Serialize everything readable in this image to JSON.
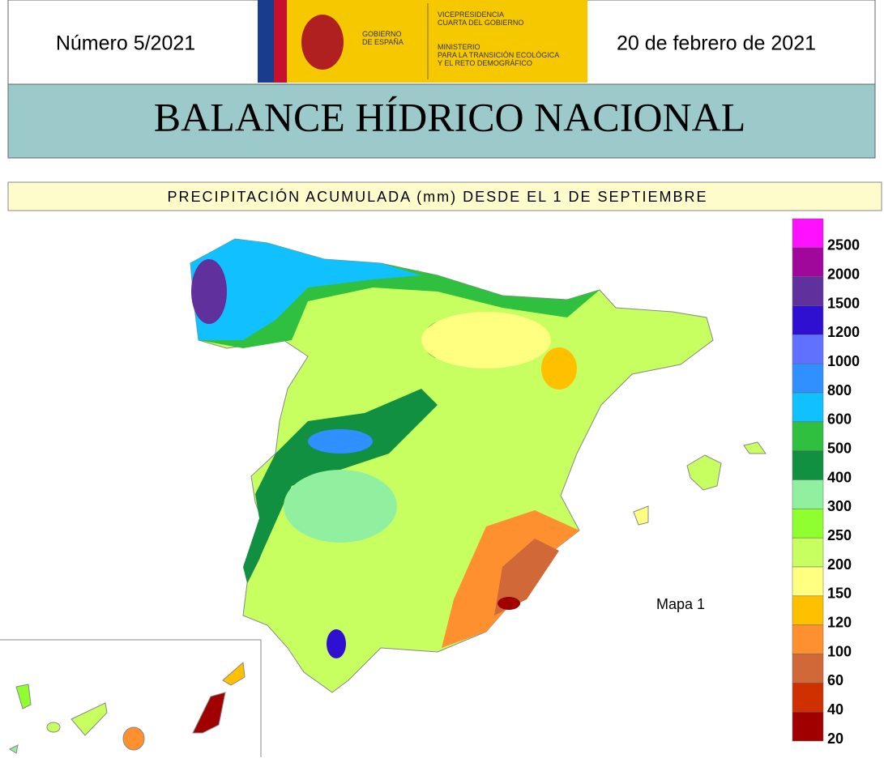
{
  "header": {
    "number": "Número 5/2021",
    "date": "20 de febrero de 2021",
    "logo": {
      "government": [
        "GOBIERNO",
        "DE ESPAÑA"
      ],
      "vicepresidency": [
        "VICEPRESIDENCIA",
        "CUARTA DEL GOBIERNO"
      ],
      "ministry": [
        "MINISTERIO",
        "PARA LA TRANSICIÓN ECOLÓGICA",
        "Y EL RETO DEMOGRÁFICO"
      ]
    },
    "title": "BALANCE HÍDRICO NACIONAL"
  },
  "subtitle": "PRECIPITACIÓN ACUMULADA (mm) DESDE EL 1 DE SEPTIEMBRE",
  "map_label": "Mapa 1",
  "legend": {
    "colors": [
      "#ff10ff",
      "#a0089c",
      "#60309c",
      "#3010d0",
      "#6070ff",
      "#3090ff",
      "#10c0ff",
      "#30c040",
      "#109040",
      "#90f0a0",
      "#90ff30",
      "#c8ff60",
      "#ffff80",
      "#ffc000",
      "#ff9030",
      "#d06838",
      "#d03000",
      "#a00000"
    ],
    "labels": [
      2500,
      2000,
      1500,
      1200,
      1000,
      800,
      600,
      500,
      400,
      300,
      250,
      200,
      150,
      120,
      100,
      60,
      40,
      20
    ]
  }
}
